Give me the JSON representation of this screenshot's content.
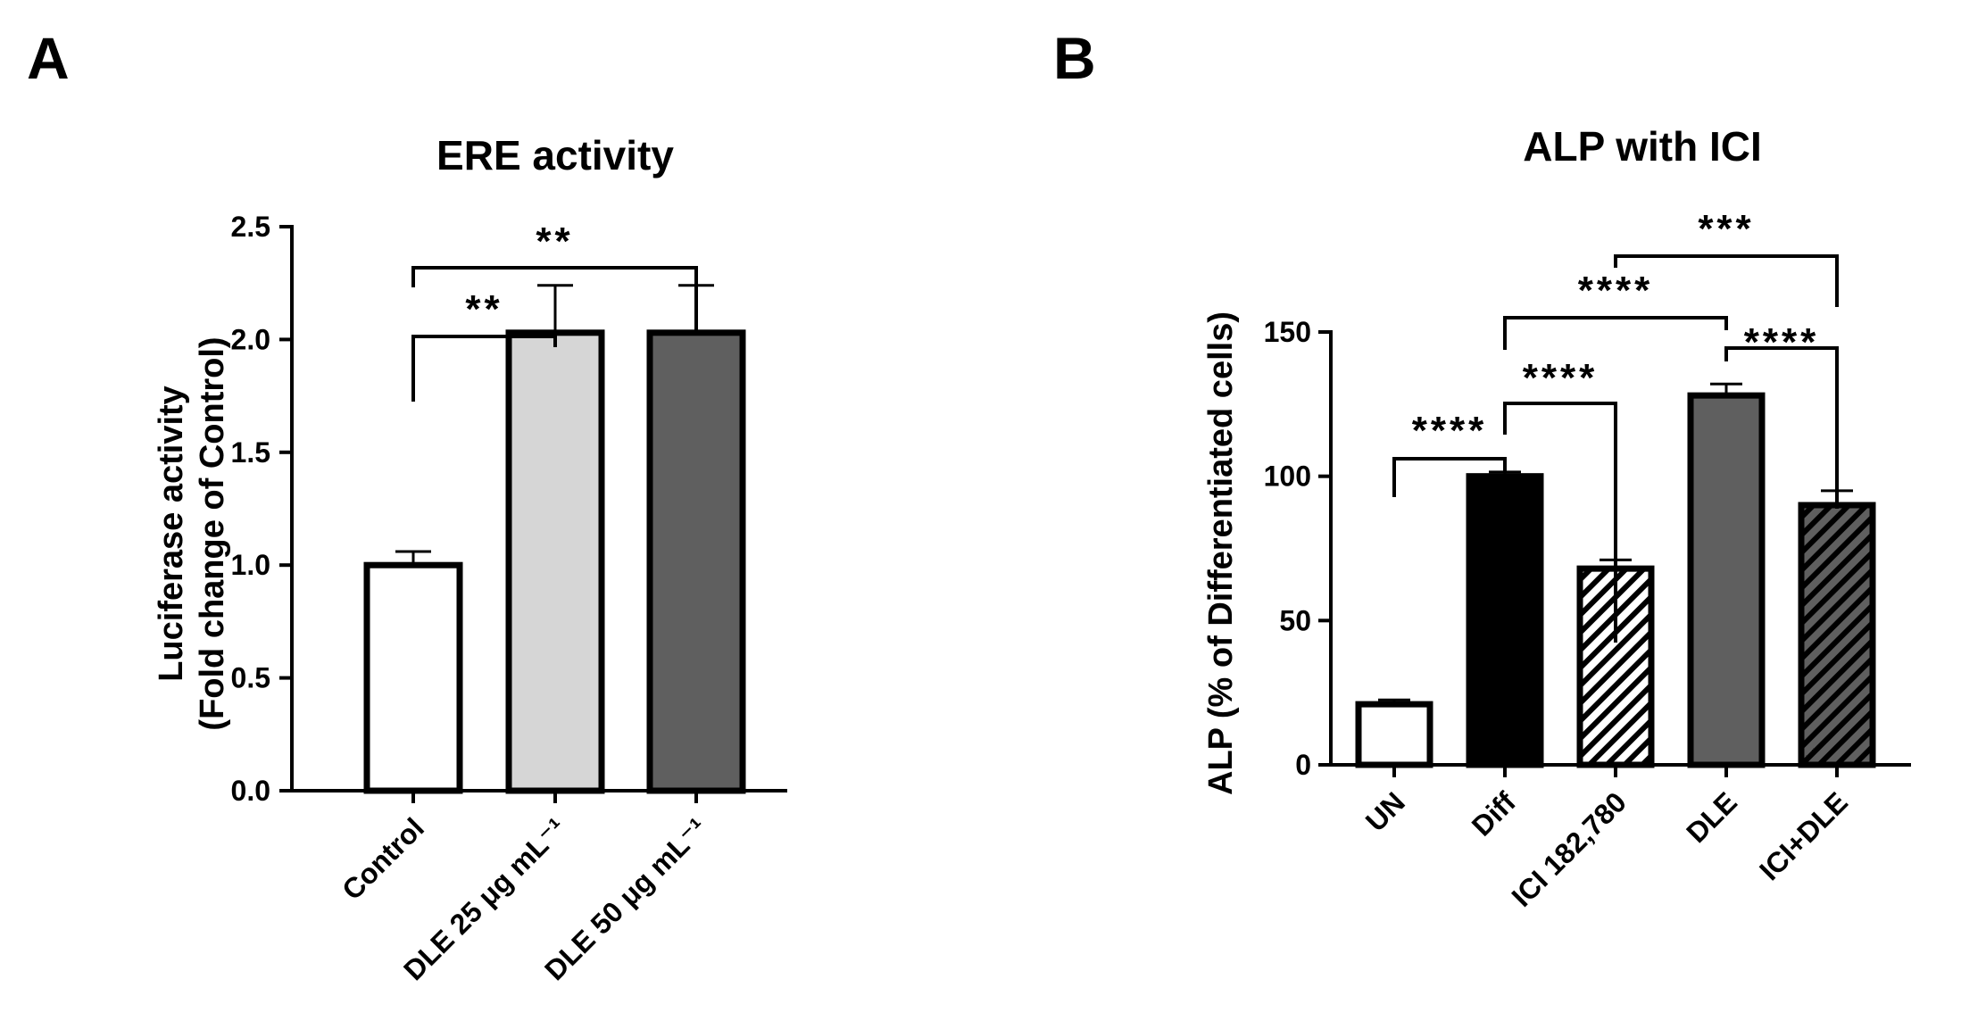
{
  "chart_data": [
    {
      "panel": "A",
      "type": "bar",
      "title": "ERE activity",
      "ylabel": [
        "Luciferase activity",
        "(Fold change of Control)"
      ],
      "xlabel": "",
      "ylim": [
        0,
        2.5
      ],
      "yticks": [
        "0.0",
        "0.5",
        "1.0",
        "1.5",
        "2.0",
        "2.5"
      ],
      "categories": [
        "Control",
        "DLE 25 μg mL⁻¹",
        "DLE 50 μg mL⁻¹"
      ],
      "values": [
        1.0,
        2.03,
        2.03
      ],
      "errors": [
        0.06,
        0.21,
        0.21
      ],
      "fills": [
        "#ffffff",
        "#d6d6d6",
        "#5f5f5f"
      ],
      "hatched": [
        false,
        false,
        false
      ],
      "significance": [
        {
          "from": 0,
          "to": 1,
          "label": "**"
        },
        {
          "from": 0,
          "to": 2,
          "label": "**"
        }
      ]
    },
    {
      "panel": "B",
      "type": "bar",
      "title": "ALP with ICI",
      "ylabel": [
        "ALP (% of Differentiated cells)"
      ],
      "xlabel": "",
      "ylim": [
        0,
        150
      ],
      "yticks": [
        "0",
        "50",
        "100",
        "150"
      ],
      "categories": [
        "UN",
        "Diff",
        "ICI 182,780",
        "DLE",
        "ICI+DLE"
      ],
      "values": [
        21,
        100,
        68,
        128,
        90
      ],
      "errors": [
        1.5,
        1.5,
        3,
        4,
        5
      ],
      "fills": [
        "#ffffff",
        "#000000",
        "#ffffff",
        "#5f5f5f",
        "#5f5f5f"
      ],
      "hatched": [
        false,
        false,
        true,
        false,
        true
      ],
      "significance": [
        {
          "from": 0,
          "to": 1,
          "label": "****"
        },
        {
          "from": 1,
          "to": 2,
          "label": "****"
        },
        {
          "from": 3,
          "to": 4,
          "label": "****"
        },
        {
          "from": 1,
          "to": 3,
          "label": "****"
        },
        {
          "from": 2,
          "to": 4,
          "label": "***"
        }
      ]
    }
  ]
}
